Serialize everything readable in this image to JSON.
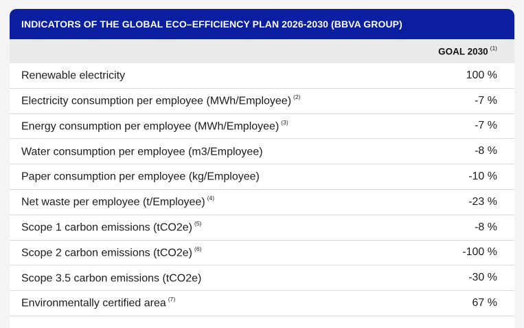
{
  "title": "INDICATORS OF THE GLOBAL ECO–EFFICIENCY PLAN 2026-2030 (BBVA GROUP)",
  "column_header": {
    "label": "GOAL 2030",
    "note": "(1)"
  },
  "rows": [
    {
      "indicator": "Renewable electricity",
      "note": "",
      "goal": "100 %"
    },
    {
      "indicator": "Electricity consumption per employee (MWh/Employee)",
      "note": "(2)",
      "goal": "-7 %"
    },
    {
      "indicator": "Energy consumption per employee (MWh/Employee)",
      "note": "(3)",
      "goal": "-7 %"
    },
    {
      "indicator": "Water consumption per employee (m3/Employee)",
      "note": "",
      "goal": "-8 %"
    },
    {
      "indicator": "Paper consumption per employee (kg/Employee)",
      "note": "",
      "goal": "-10 %"
    },
    {
      "indicator": "Net waste per employee (t/Employee)",
      "note": "(4)",
      "goal": "-23 %"
    },
    {
      "indicator": "Scope 1 carbon emissions (tCO2e)",
      "note": "(5)",
      "goal": "-8 %"
    },
    {
      "indicator": "Scope 2 carbon emissions (tCO2e)",
      "note": "(6)",
      "goal": "-100 %"
    },
    {
      "indicator": "Scope 3.5 carbon emissions (tCO2e)",
      "note": "",
      "goal": "-30 %"
    },
    {
      "indicator": "Environmentally certified area",
      "note": "(7)",
      "goal": "67 %"
    }
  ]
}
